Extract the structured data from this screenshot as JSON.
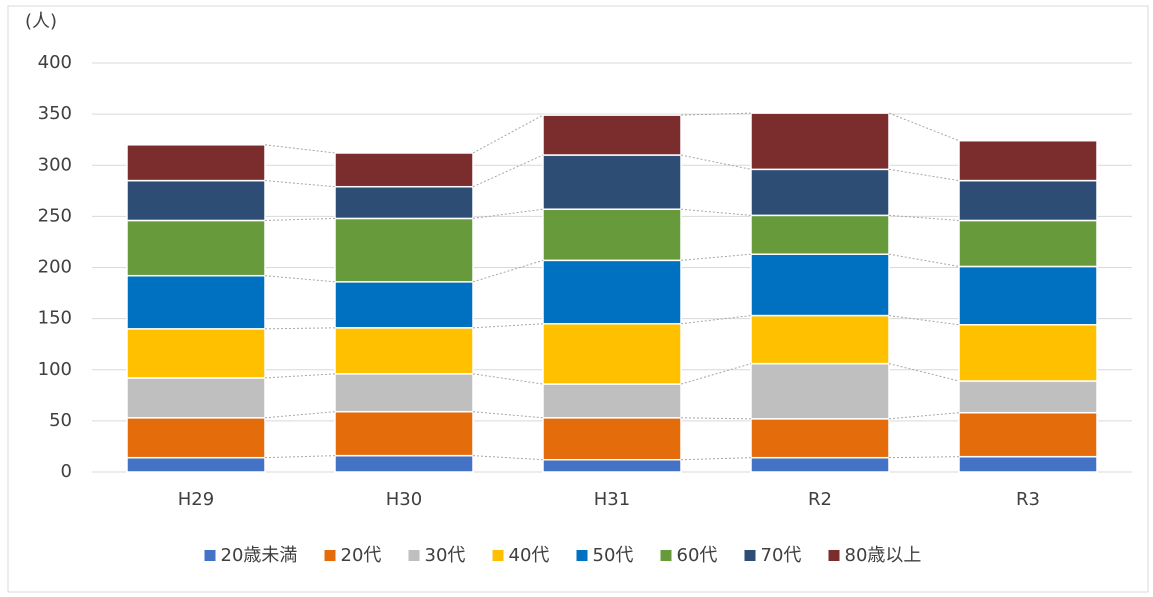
{
  "chart_data": {
    "type": "stacked_bar",
    "y_label": "(人)",
    "categories": [
      "H29",
      "H30",
      "H31",
      "R2",
      "R3"
    ],
    "series": [
      {
        "name": "20歳未満",
        "color": "#4472c4",
        "values": [
          14,
          16,
          12,
          14,
          15
        ]
      },
      {
        "name": "20代",
        "color": "#e46c0a",
        "values": [
          39,
          43,
          41,
          38,
          43
        ]
      },
      {
        "name": "30代",
        "color": "#bfbfbf",
        "values": [
          39,
          37,
          33,
          54,
          31
        ]
      },
      {
        "name": "40代",
        "color": "#ffc000",
        "values": [
          48,
          45,
          59,
          47,
          55
        ]
      },
      {
        "name": "50代",
        "color": "#0070c0",
        "values": [
          52,
          45,
          62,
          60,
          57
        ]
      },
      {
        "name": "60代",
        "color": "#669a3a",
        "values": [
          54,
          62,
          50,
          38,
          45
        ]
      },
      {
        "name": "70代",
        "color": "#2e4d74",
        "values": [
          39,
          31,
          53,
          45,
          39
        ]
      },
      {
        "name": "80歳以上",
        "color": "#7b2c2c",
        "values": [
          35,
          33,
          39,
          55,
          39
        ]
      }
    ],
    "ylim": [
      0,
      400
    ],
    "yticks": [
      0,
      50,
      100,
      150,
      200,
      250,
      300,
      350,
      400
    ],
    "grid": true
  }
}
